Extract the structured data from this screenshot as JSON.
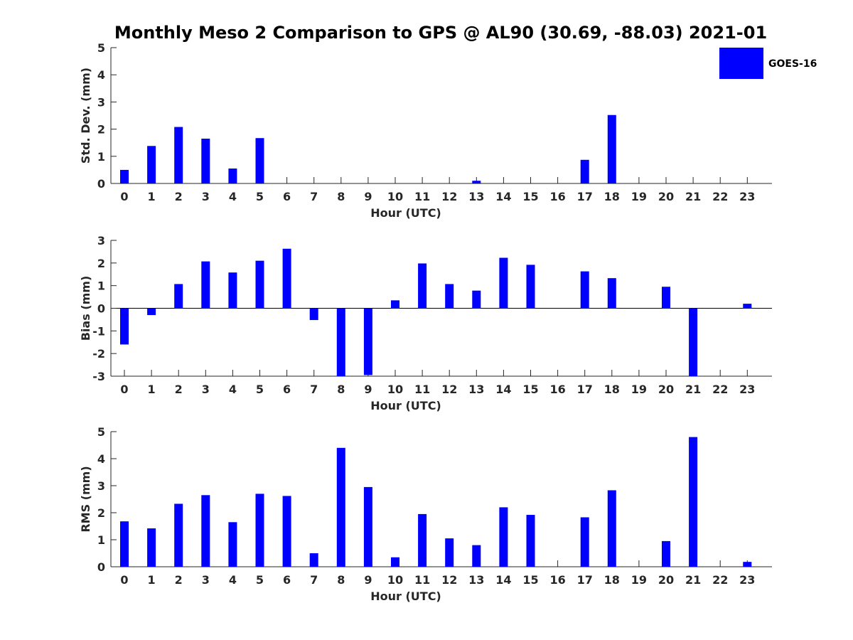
{
  "figure_title": "Monthly Meso 2 Comparison to GPS @ AL90 (30.69, -88.03) 2021-01",
  "legend": {
    "label": "GOES-16",
    "color": "#0000ff"
  },
  "chart_data": [
    {
      "type": "bar",
      "title": "Monthly Meso 2 Comparison to GPS @ AL90 (30.69, -88.03) 2021-01",
      "xlabel": "Hour (UTC)",
      "ylabel": "Std. Dev. (mm)",
      "ylim": [
        0,
        5
      ],
      "yticks": [
        "0",
        "1",
        "2",
        "3",
        "4",
        "5"
      ],
      "categories": [
        "0",
        "1",
        "2",
        "3",
        "4",
        "5",
        "6",
        "7",
        "8",
        "9",
        "10",
        "11",
        "12",
        "13",
        "14",
        "15",
        "16",
        "17",
        "18",
        "19",
        "20",
        "21",
        "22",
        "23"
      ],
      "series": [
        {
          "name": "GOES-16",
          "color": "#0000ff",
          "values": [
            0.5,
            1.38,
            2.08,
            1.65,
            0.55,
            1.67,
            0,
            0,
            0,
            0,
            0,
            0,
            0,
            0.1,
            0,
            0,
            0,
            0.87,
            2.52,
            0,
            0,
            0,
            0,
            0
          ]
        }
      ]
    },
    {
      "type": "bar",
      "xlabel": "Hour (UTC)",
      "ylabel": "Bias (mm)",
      "ylim": [
        -3,
        3
      ],
      "yticks": [
        "-3",
        "-2",
        "-1",
        "0",
        "1",
        "2",
        "3"
      ],
      "categories": [
        "0",
        "1",
        "2",
        "3",
        "4",
        "5",
        "6",
        "7",
        "8",
        "9",
        "10",
        "11",
        "12",
        "13",
        "14",
        "15",
        "16",
        "17",
        "18",
        "19",
        "20",
        "21",
        "22",
        "23"
      ],
      "series": [
        {
          "name": "GOES-16",
          "color": "#0000ff",
          "values": [
            -1.6,
            -0.3,
            1.07,
            2.07,
            1.58,
            2.1,
            2.63,
            -0.52,
            -3.0,
            -2.95,
            0.35,
            1.98,
            1.07,
            0.78,
            2.23,
            1.92,
            0,
            1.63,
            1.33,
            0,
            0.95,
            -3.0,
            0,
            0.2
          ]
        }
      ]
    },
    {
      "type": "bar",
      "xlabel": "Hour (UTC)",
      "ylabel": "RMS (mm)",
      "ylim": [
        0,
        5
      ],
      "yticks": [
        "0",
        "1",
        "2",
        "3",
        "4",
        "5"
      ],
      "categories": [
        "0",
        "1",
        "2",
        "3",
        "4",
        "5",
        "6",
        "7",
        "8",
        "9",
        "10",
        "11",
        "12",
        "13",
        "14",
        "15",
        "16",
        "17",
        "18",
        "19",
        "20",
        "21",
        "22",
        "23"
      ],
      "series": [
        {
          "name": "GOES-16",
          "color": "#0000ff",
          "values": [
            1.68,
            1.42,
            2.33,
            2.65,
            1.65,
            2.7,
            2.62,
            0.5,
            4.4,
            2.95,
            0.35,
            1.95,
            1.05,
            0.8,
            2.2,
            1.92,
            0,
            1.83,
            2.83,
            0,
            0.95,
            4.8,
            0,
            0.18
          ]
        }
      ]
    }
  ]
}
